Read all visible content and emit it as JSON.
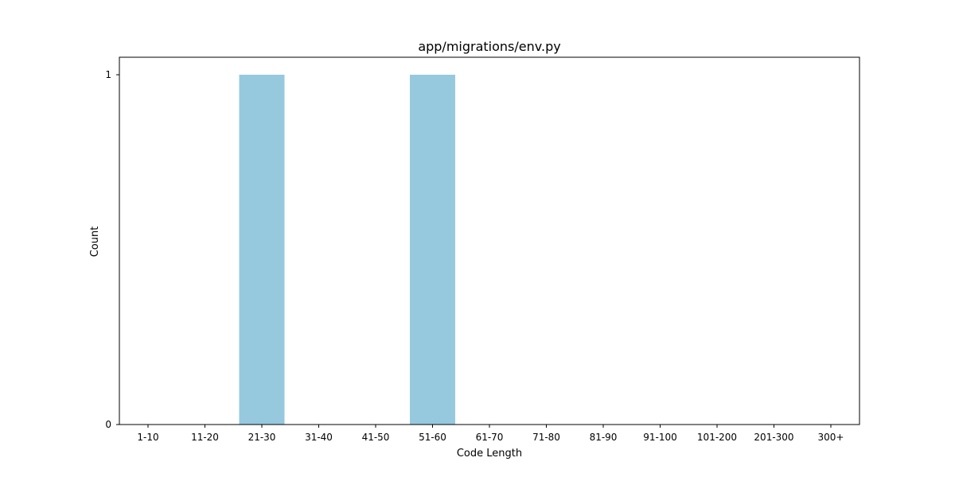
{
  "chart_data": {
    "type": "bar",
    "title": "app/migrations/env.py",
    "xlabel": "Code Length",
    "ylabel": "Count",
    "categories": [
      "1-10",
      "11-20",
      "21-30",
      "31-40",
      "41-50",
      "51-60",
      "61-70",
      "71-80",
      "81-90",
      "91-100",
      "101-200",
      "201-300",
      "300+"
    ],
    "values": [
      0,
      0,
      1,
      0,
      0,
      1,
      0,
      0,
      0,
      0,
      0,
      0,
      0
    ],
    "ylim": [
      0,
      1
    ],
    "yticks": [
      "0",
      "1"
    ],
    "grid": false,
    "bar_color": "#96c9de"
  }
}
